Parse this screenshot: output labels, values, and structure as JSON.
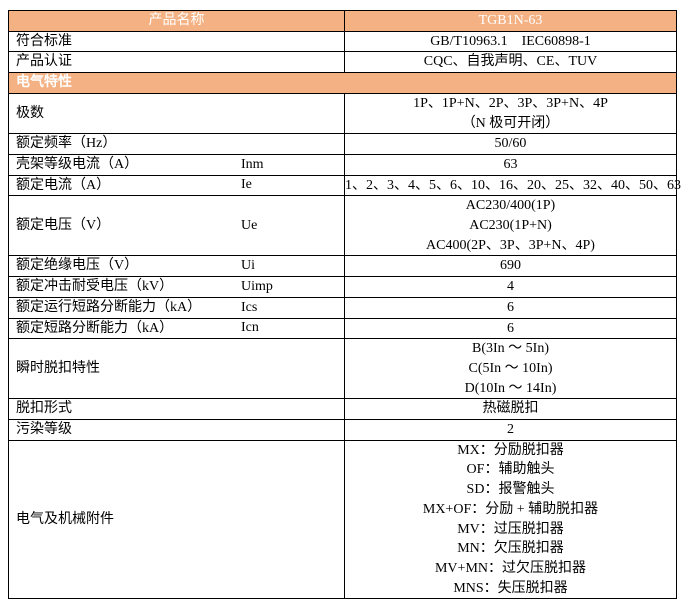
{
  "colors": {
    "accent_orange": "#F4B183",
    "header_text": "#FFFFFF",
    "border": "#000000",
    "body_text": "#000000",
    "page_bg": "#FFFFFF"
  },
  "table": {
    "header": {
      "name_label": "产品名称",
      "model": "TGB1N-63"
    },
    "info_rows": [
      {
        "label": "符合标准",
        "value": "GB/T10963.1　IEC60898-1"
      },
      {
        "label": "产品认证",
        "value": "CQC、自我声明、CE、TUV"
      }
    ],
    "section_title": "电气特性",
    "spec_rows": [
      {
        "label": "极数",
        "symbol": "",
        "values": [
          "1P、1P+N、2P、3P、3P+N、4P",
          "（N 极可开闭）"
        ]
      },
      {
        "label": "额定频率（Hz）",
        "symbol": "",
        "values": [
          "50/60"
        ]
      },
      {
        "label": "壳架等级电流（A）",
        "symbol": "Inm",
        "values": [
          "63"
        ]
      },
      {
        "label": "额定电流（A）",
        "symbol": "Ie",
        "values": [
          "1、2、3、4、5、6、10、16、20、25、32、40、50、63"
        ]
      },
      {
        "label": "额定电压（V）",
        "symbol": "Ue",
        "values": [
          "AC230/400(1P)",
          "AC230(1P+N)",
          "AC400(2P、3P、3P+N、4P)"
        ]
      },
      {
        "label": "额定绝缘电压（V）",
        "symbol": "Ui",
        "values": [
          "690"
        ]
      },
      {
        "label": "额定冲击耐受电压（kV）",
        "symbol": "Uimp",
        "values": [
          "4"
        ]
      },
      {
        "label": "额定运行短路分断能力（kA）",
        "symbol": "Ics",
        "values": [
          "6"
        ]
      },
      {
        "label": "额定短路分断能力（kA）",
        "symbol": "Icn",
        "values": [
          "6"
        ]
      },
      {
        "label": "瞬时脱扣特性",
        "symbol": "",
        "values": [
          "B(3In ～ 5In)",
          "C(5In ～ 10In)",
          "D(10In ～ 14In)"
        ]
      },
      {
        "label": "脱扣形式",
        "symbol": "",
        "values": [
          "热磁脱扣"
        ]
      },
      {
        "label": "污染等级",
        "symbol": "",
        "values": [
          "2"
        ]
      },
      {
        "label": "电气及机械附件",
        "symbol": "",
        "values": [
          "MX：分励脱扣器",
          "OF：辅助触头",
          "SD：报警触头",
          "MX+OF：分励 + 辅助脱扣器",
          "MV：过压脱扣器",
          "MN：欠压脱扣器",
          "MV+MN：过欠压脱扣器",
          "MNS：失压脱扣器"
        ]
      }
    ]
  }
}
